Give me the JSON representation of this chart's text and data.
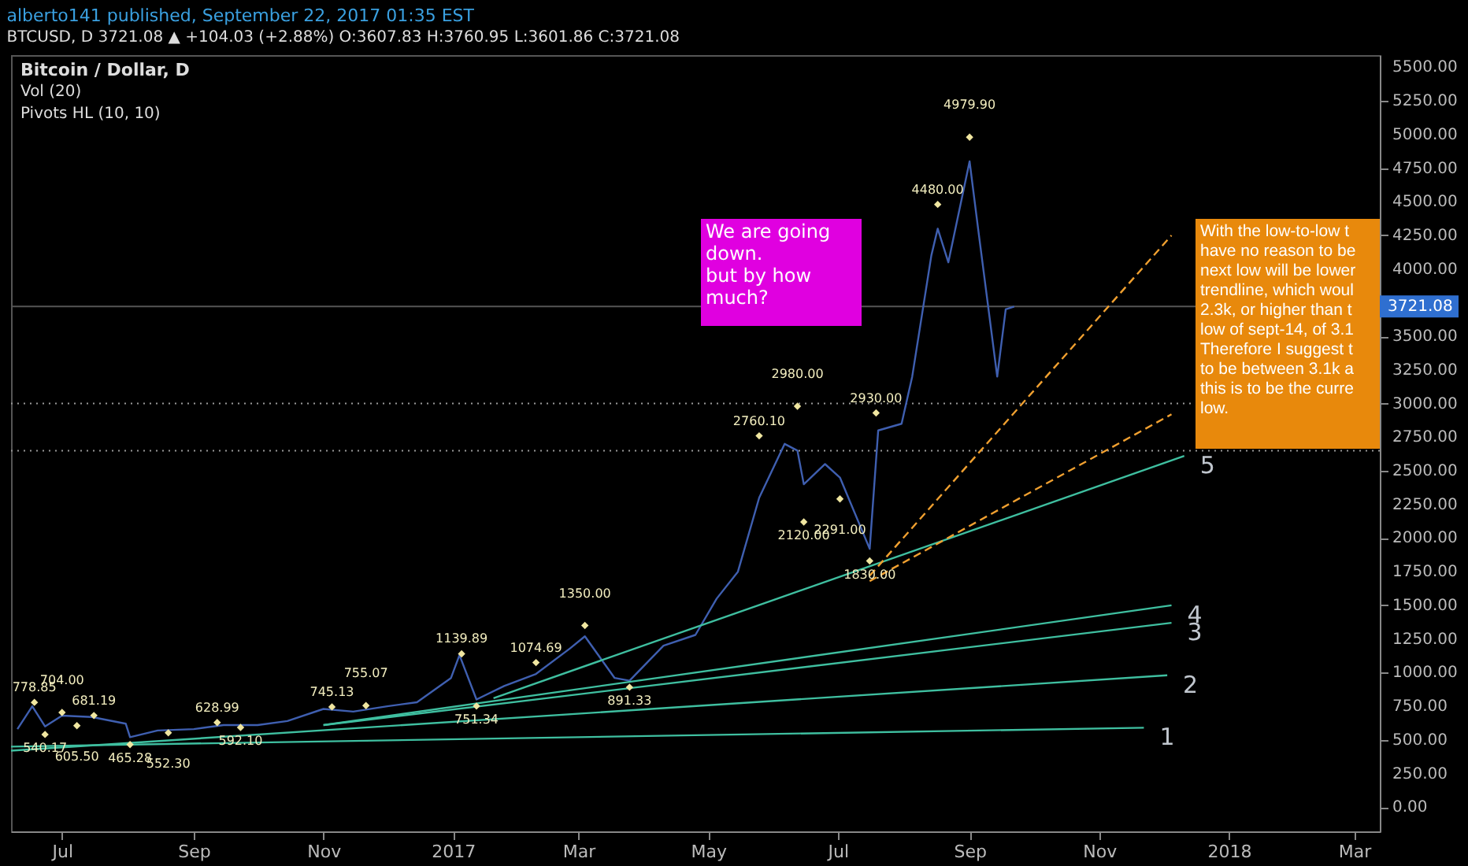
{
  "chart_data": {
    "type": "line",
    "title": "Bitcoin / Dollar, D",
    "xlim": [
      "2016-06-07",
      "2018-03-13"
    ],
    "ylim": [
      -180,
      5590
    ],
    "xticks": [
      {
        "value": "2016-07-01",
        "label": "Jul"
      },
      {
        "value": "2016-09-01",
        "label": "Sep"
      },
      {
        "value": "2016-11-01",
        "label": "Nov"
      },
      {
        "value": "2017-01-01",
        "label": "2017"
      },
      {
        "value": "2017-03-01",
        "label": "Mar"
      },
      {
        "value": "2017-05-01",
        "label": "May"
      },
      {
        "value": "2017-07-01",
        "label": "Jul"
      },
      {
        "value": "2017-09-01",
        "label": "Sep"
      },
      {
        "value": "2017-11-01",
        "label": "Nov"
      },
      {
        "value": "2018-01-01",
        "label": "2018"
      },
      {
        "value": "2018-03-01",
        "label": "Mar"
      }
    ],
    "yticks": [
      {
        "value": 0,
        "label": "0.00"
      },
      {
        "value": 250,
        "label": "250.00"
      },
      {
        "value": 500,
        "label": "500.00"
      },
      {
        "value": 750,
        "label": "750.00"
      },
      {
        "value": 1000,
        "label": "1000.00"
      },
      {
        "value": 1250,
        "label": "1250.00"
      },
      {
        "value": 1500,
        "label": "1500.00"
      },
      {
        "value": 1750,
        "label": "1750.00"
      },
      {
        "value": 2000,
        "label": "2000.00"
      },
      {
        "value": 2250,
        "label": "2250.00"
      },
      {
        "value": 2500,
        "label": "2500.00"
      },
      {
        "value": 2750,
        "label": "2750.00"
      },
      {
        "value": 3000,
        "label": "3000.00"
      },
      {
        "value": 3250,
        "label": "3250.00"
      },
      {
        "value": 3500,
        "label": "3500.00"
      },
      {
        "value": 4000,
        "label": "4000.00"
      },
      {
        "value": 4250,
        "label": "4250.00"
      },
      {
        "value": 4500,
        "label": "4500.00"
      },
      {
        "value": 4750,
        "label": "4750.00"
      },
      {
        "value": 5000,
        "label": "5000.00"
      },
      {
        "value": 5250,
        "label": "5250.00"
      },
      {
        "value": 5500,
        "label": "5500.00"
      }
    ],
    "grid": false,
    "series": [
      {
        "color": "#3f5fb0",
        "line_style": "solid",
        "x": [
          "2016-06-10",
          "2016-06-17",
          "2016-06-23",
          "2016-07-01",
          "2016-07-15",
          "2016-07-31",
          "2016-08-02",
          "2016-08-15",
          "2016-09-01",
          "2016-09-15",
          "2016-10-01",
          "2016-10-15",
          "2016-11-01",
          "2016-11-15",
          "2016-12-01",
          "2016-12-15",
          "2016-12-31",
          "2017-01-04",
          "2017-01-12",
          "2017-01-25",
          "2017-02-09",
          "2017-02-25",
          "2017-03-04",
          "2017-03-18",
          "2017-03-25",
          "2017-04-10",
          "2017-04-25",
          "2017-05-05",
          "2017-05-15",
          "2017-05-25",
          "2017-06-06",
          "2017-06-12",
          "2017-06-15",
          "2017-06-25",
          "2017-07-02",
          "2017-07-16",
          "2017-07-20",
          "2017-07-31",
          "2017-08-05",
          "2017-08-14",
          "2017-08-17",
          "2017-08-22",
          "2017-09-01",
          "2017-09-05",
          "2017-09-14",
          "2017-09-18",
          "2017-09-22"
        ],
        "values": [
          580,
          750,
          600,
          680,
          670,
          620,
          520,
          570,
          580,
          610,
          610,
          640,
          730,
          710,
          750,
          780,
          960,
          1130,
          800,
          900,
          990,
          1180,
          1270,
          960,
          940,
          1200,
          1280,
          1550,
          1750,
          2300,
          2700,
          2650,
          2400,
          2550,
          2450,
          1920,
          2800,
          2850,
          3200,
          4100,
          4300,
          4050,
          4800,
          4300,
          3200,
          3700,
          3721.08
        ]
      },
      {
        "name": "1",
        "color": "#3fbfa0",
        "line_style": "solid",
        "x": [
          "2016-06-07",
          "2017-11-22"
        ],
        "values": [
          450,
          590
        ]
      },
      {
        "name": "2",
        "color": "#3fbfa0",
        "line_style": "solid",
        "x": [
          "2016-06-07",
          "2017-12-03"
        ],
        "values": [
          420,
          980
        ]
      },
      {
        "name": "3",
        "color": "#3fbfa0",
        "line_style": "solid",
        "x": [
          "2016-11-01",
          "2017-12-05"
        ],
        "values": [
          610,
          1370
        ]
      },
      {
        "name": "4",
        "color": "#3fbfa0",
        "line_style": "solid",
        "x": [
          "2016-11-01",
          "2017-12-05"
        ],
        "values": [
          610,
          1500
        ]
      },
      {
        "name": "5",
        "color": "#3fbfa0",
        "line_style": "solid",
        "x": [
          "2017-01-20",
          "2017-12-11"
        ],
        "values": [
          810,
          2610
        ]
      },
      {
        "color": "#f0a030",
        "line_style": "dashed",
        "x": [
          "2017-07-16",
          "2017-12-05"
        ],
        "values": [
          1720,
          4250
        ]
      },
      {
        "color": "#f0a030",
        "line_style": "dashed",
        "x": [
          "2017-07-16",
          "2017-12-05"
        ],
        "values": [
          1680,
          2920
        ]
      },
      {
        "type": "scatter",
        "marker": "diamond",
        "color": "#f0e6a0",
        "x": [
          "2016-06-18",
          "2016-07-01",
          "2016-07-16",
          "2016-09-12",
          "2016-11-05",
          "2016-11-21",
          "2017-01-05",
          "2017-02-09",
          "2017-03-04",
          "2017-05-25",
          "2017-06-12",
          "2017-07-19",
          "2017-08-17",
          "2017-09-01"
        ],
        "values": [
          778.85,
          704,
          681.19,
          628.99,
          745.13,
          755.07,
          1139.89,
          1074.69,
          1350,
          2760.1,
          2980,
          2930,
          4480,
          4979.9
        ],
        "value_labels": [
          "778.85",
          "704.00",
          "681.19",
          "628.99",
          "745.13",
          "755.07",
          "1139.89",
          "1074.69",
          "1350.00",
          "2760.10",
          "2980.00",
          "2930.00",
          "4480.00",
          "4979.90"
        ]
      },
      {
        "type": "scatter",
        "marker": "diamond",
        "color": "#f0e6a0",
        "x": [
          "2016-06-23",
          "2016-07-08",
          "2016-08-02",
          "2016-08-20",
          "2016-09-23",
          "2017-01-12",
          "2017-03-25",
          "2017-06-15",
          "2017-07-02",
          "2017-07-16"
        ],
        "values": [
          540.17,
          605.5,
          465.28,
          552.3,
          592.1,
          751.34,
          891.33,
          2120,
          2291,
          1830
        ],
        "value_labels": [
          "540.17",
          "605.50",
          "465.28",
          "552.30",
          "592.10",
          "751.34",
          "891.33",
          "2120.00",
          "2291.00",
          "1830.00"
        ]
      }
    ],
    "ref_lines": [
      {
        "axis": "y",
        "value": 3721.08,
        "label": "3721.08",
        "color": "#555555",
        "line_style": "solid"
      },
      {
        "axis": "y",
        "value": 3000,
        "label": null,
        "color": "#999999",
        "line_style": "dotted"
      },
      {
        "axis": "y",
        "value": 2650,
        "label": null,
        "color": "#999999",
        "line_style": "dotted"
      }
    ],
    "annotations": [
      "alberto141 published, September 22, 2017 01:35 EST",
      "BTCUSD, D 3721.08 ▲ +104.03 (+2.88%) O:3607.83 H:3760.95 L:3601.86 C:3721.08",
      "Vol (20)",
      "Pivots HL (10, 10)",
      "We are going\ndown.\nbut by how\nmuch?",
      "With the low-to-low t\nhave no reason to be\nnext low will be lower\ntrendline, which woul\n2.3k, or higher than t\nlow of sept-14, of 3.1\n\nTherefore I suggest t\nto be between 3.1k a\nthis is to be the curre\nlow."
    ]
  }
}
